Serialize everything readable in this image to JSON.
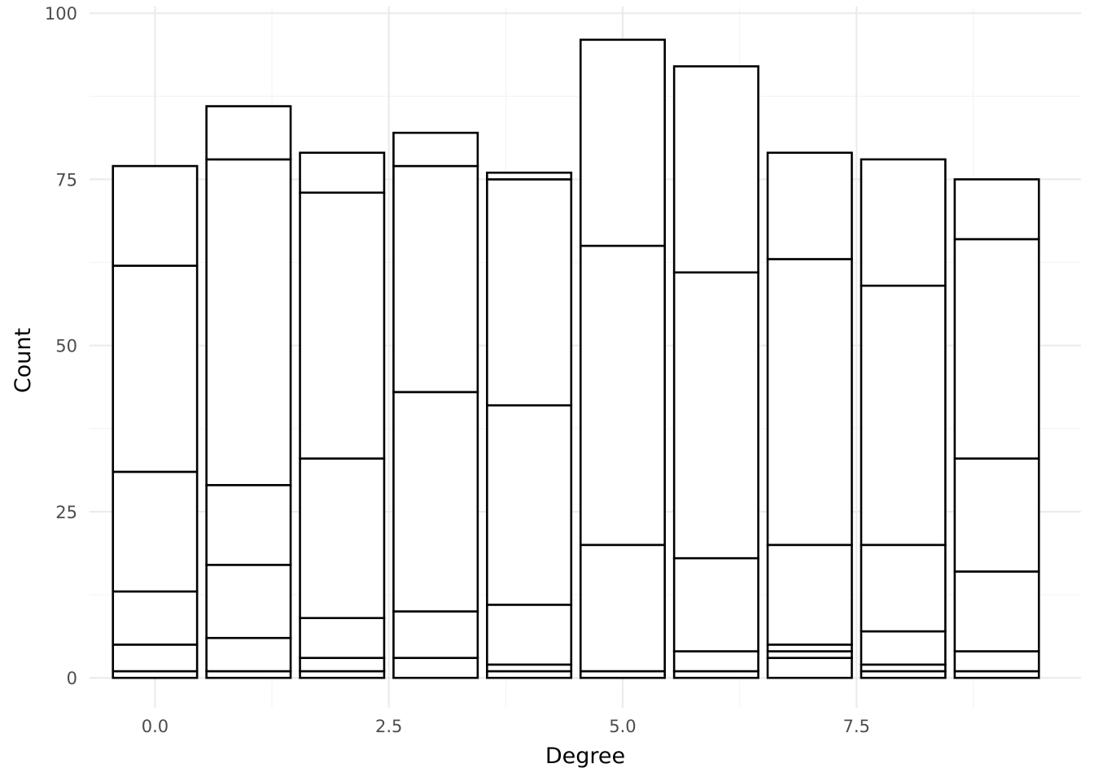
{
  "chart_data": {
    "type": "bar",
    "stacked": true,
    "title": "",
    "xlabel": "Degree",
    "ylabel": "Count",
    "x": [
      0,
      1,
      2,
      3,
      4,
      5,
      6,
      7,
      8,
      9
    ],
    "xlim": [
      -0.7,
      9.9
    ],
    "ylim": [
      -4.5,
      101
    ],
    "x_ticks": [
      0,
      2.5,
      5,
      7.5
    ],
    "x_tick_labels": [
      "0.0",
      "2.5",
      "5.0",
      "7.5"
    ],
    "y_ticks": [
      0,
      25,
      50,
      75,
      100
    ],
    "y_tick_labels": [
      "0",
      "25",
      "50",
      "75",
      "100"
    ],
    "grid": true,
    "fill_color": "#ffffff",
    "outline_color": "#000000",
    "stack_boundaries": [
      [
        0,
        1,
        5,
        13,
        31,
        62,
        77
      ],
      [
        0,
        1,
        6,
        17,
        29,
        78,
        86
      ],
      [
        0,
        1,
        3,
        9,
        33,
        73,
        79
      ],
      [
        0,
        3,
        10,
        43,
        77,
        82
      ],
      [
        0,
        1,
        2,
        11,
        41,
        75,
        76
      ],
      [
        0,
        1,
        20,
        65,
        96
      ],
      [
        0,
        1,
        4,
        18,
        61,
        92
      ],
      [
        0,
        3,
        4,
        5,
        20,
        63,
        79
      ],
      [
        0,
        1,
        2,
        7,
        20,
        59,
        78
      ],
      [
        0,
        1,
        4,
        16,
        33,
        66,
        75
      ]
    ],
    "totals": [
      77,
      86,
      79,
      82,
      76,
      96,
      92,
      79,
      78,
      75
    ]
  }
}
